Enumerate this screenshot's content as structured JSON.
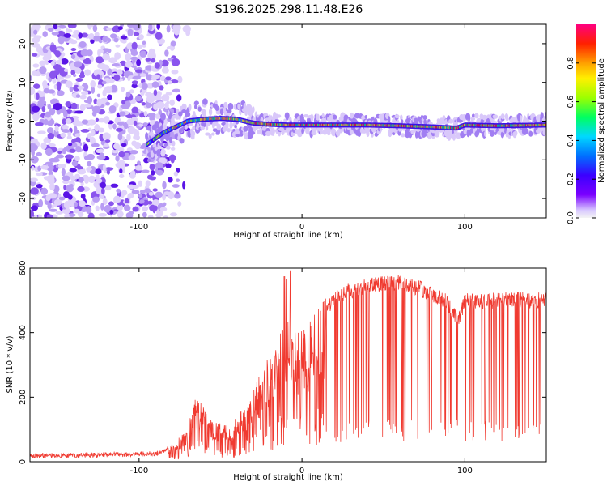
{
  "page_title": "S196.2025.298.11.48.E26",
  "colors": {
    "plot_background": "#ffffff",
    "axis": "#000000",
    "snr_line": "#f03a30",
    "ridge_core": "#2ec4e0",
    "scatter_purple": "#7a3df0",
    "scatter_light": "#cdb8f8"
  },
  "chart_data": [
    {
      "type": "heatmap",
      "title": "S196.2025.298.11.48.E26",
      "xlabel": "Height of straight line (km)",
      "ylabel": "Frequency (Hz)",
      "xlim": [
        -167,
        150
      ],
      "ylim": [
        -25,
        25
      ],
      "x_ticks": [
        -100,
        0,
        100
      ],
      "y_ticks": [
        -20,
        -10,
        0,
        10,
        20
      ],
      "description_of_ridge": {
        "x": [
          -95,
          -85,
          -75,
          -70,
          -60,
          -50,
          -40,
          -35,
          -30,
          -20,
          -10,
          0,
          20,
          40,
          60,
          80,
          95,
          100,
          120,
          150
        ],
        "frequency": [
          -6,
          -3,
          -1,
          0,
          0.5,
          0.7,
          0.5,
          0,
          -0.5,
          -0.8,
          -1,
          -1,
          -1,
          -1,
          -1.2,
          -1.5,
          -1.8,
          -1,
          -1.2,
          -1
        ]
      },
      "noise_region_x": [
        -167,
        -80
      ],
      "colorbar": {
        "label": "Normalized spectral amplitude",
        "range": [
          0,
          1
        ],
        "ticks": [
          0.0,
          0.2,
          0.4,
          0.6,
          0.8
        ],
        "tick_labels": [
          "0.0",
          "0.2",
          "0.4",
          "0.6",
          "0.8"
        ],
        "colors": [
          "#f4f4f4",
          "#7a00ff",
          "#3b00ff",
          "#0070ff",
          "#00d8ff",
          "#00ff60",
          "#9cff00",
          "#fff000",
          "#ffa000",
          "#ff2000",
          "#ff0080"
        ]
      }
    },
    {
      "type": "line",
      "xlabel": "Height of straight line (km)",
      "ylabel": "SNR (10 * v/v)",
      "xlim": [
        -167,
        150
      ],
      "ylim": [
        0,
        600
      ],
      "x_ticks": [
        -100,
        0,
        100
      ],
      "y_ticks": [
        0,
        200,
        400,
        600
      ],
      "series": [
        {
          "name": "SNR",
          "envelope_x": [
            -167,
            -140,
            -110,
            -90,
            -82,
            -75,
            -70,
            -65,
            -60,
            -55,
            -50,
            -45,
            -40,
            -35,
            -30,
            -25,
            -20,
            -15,
            -10,
            -5,
            0,
            5,
            10,
            15,
            20,
            25,
            30,
            40,
            50,
            60,
            70,
            80,
            88,
            92,
            96,
            100,
            110,
            120,
            130,
            140,
            150
          ],
          "envelope_y": [
            18,
            20,
            22,
            25,
            40,
            70,
            100,
            190,
            150,
            120,
            110,
            100,
            130,
            160,
            200,
            260,
            300,
            350,
            390,
            400,
            370,
            410,
            440,
            470,
            500,
            520,
            530,
            545,
            550,
            555,
            540,
            520,
            500,
            470,
            440,
            500,
            495,
            500,
            505,
            500,
            500
          ]
        }
      ]
    }
  ]
}
